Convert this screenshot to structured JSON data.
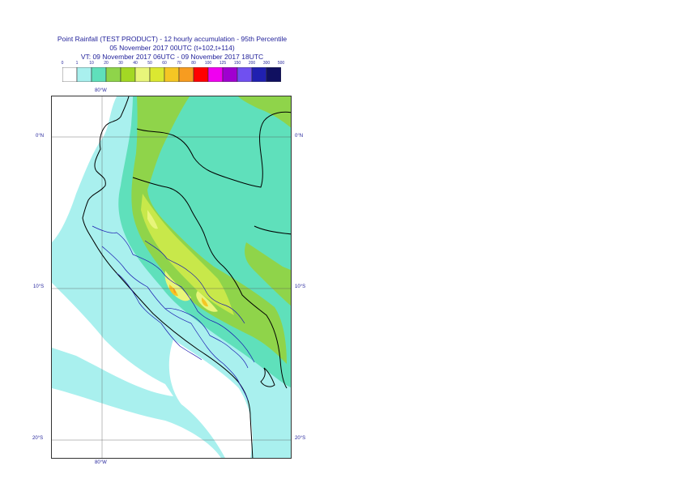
{
  "title": {
    "line1": "Point Rainfall (TEST PRODUCT) - 12 hourly accumulation - 95th Percentile",
    "line2": "05 November 2017 00UTC (t+102,t+114)",
    "line3": "VT: 09 November 2017 06UTC - 09 November 2017 18UTC"
  },
  "legend": {
    "ticks": [
      "0",
      "1",
      "10",
      "20",
      "30",
      "40",
      "50",
      "60",
      "70",
      "80",
      "100",
      "125",
      "150",
      "200",
      "300",
      "500"
    ],
    "colors": [
      "#ffffff",
      "#a9f0ee",
      "#5fe0bb",
      "#8fd44a",
      "#a3d824",
      "#e8f57a",
      "#dbe831",
      "#f5c624",
      "#f79c20",
      "#ff0000",
      "#f000f0",
      "#a000d0",
      "#7050f0",
      "#2020b0",
      "#101060"
    ]
  },
  "axes": {
    "top_lon": "80°W",
    "bottom_lon": "80°W",
    "left_lats": [
      "0°N",
      "10°S",
      "20°S"
    ],
    "right_lats": [
      "0°N",
      "10°S",
      "20°S"
    ]
  },
  "map": {
    "ocean_color": "#a9f0ee",
    "colors": {
      "light": "#a9f0ee",
      "mid": "#5fe0bb",
      "green": "#8fd44a",
      "yellowgreen": "#c8e84a",
      "yellow": "#e8f57a",
      "orange": "#f5c624",
      "red": "#f79c20",
      "coast": "#000000",
      "admin": "#1a1ab0",
      "grid": "#555555"
    }
  }
}
